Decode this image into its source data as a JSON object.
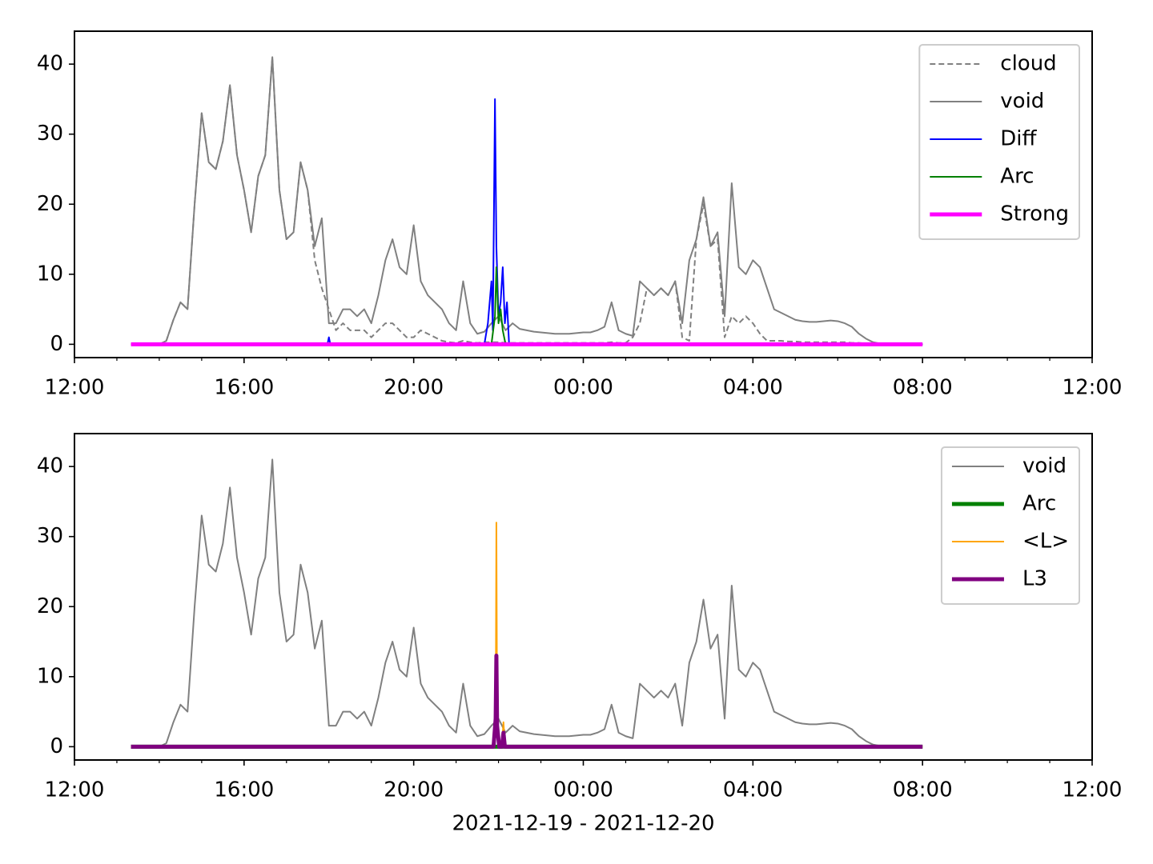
{
  "chart_data": [
    {
      "type": "line",
      "xlim": [
        "2021-12-19 12:00",
        "2021-12-20 12:00"
      ],
      "xticks": [
        {
          "value": "2021-12-19 12:00",
          "label": "12:00"
        },
        {
          "value": "2021-12-19 16:00",
          "label": "16:00"
        },
        {
          "value": "2021-12-19 20:00",
          "label": "20:00"
        },
        {
          "value": "2021-12-20 00:00",
          "label": "00:00"
        },
        {
          "value": "2021-12-20 04:00",
          "label": "04:00"
        },
        {
          "value": "2021-12-20 08:00",
          "label": "08:00"
        },
        {
          "value": "2021-12-20 12:00",
          "label": "12:00"
        }
      ],
      "xminorticks": [
        "2021-12-19 13:00",
        "2021-12-19 14:00",
        "2021-12-19 15:00",
        "2021-12-19 17:00",
        "2021-12-19 18:00",
        "2021-12-19 19:00",
        "2021-12-19 21:00",
        "2021-12-19 22:00",
        "2021-12-19 23:00",
        "2021-12-20 01:00",
        "2021-12-20 02:00",
        "2021-12-20 03:00",
        "2021-12-20 05:00",
        "2021-12-20 06:00",
        "2021-12-20 07:00",
        "2021-12-20 09:00",
        "2021-12-20 10:00",
        "2021-12-20 11:00"
      ],
      "ylim": [
        -1.9,
        44.7
      ],
      "yticks": [
        0,
        10,
        20,
        30,
        40
      ],
      "legend": "upper right",
      "x": [
        "2021-12-19 13:20",
        "2021-12-19 13:30",
        "2021-12-19 13:40",
        "2021-12-19 13:50",
        "2021-12-19 14:00",
        "2021-12-19 14:10",
        "2021-12-19 14:20",
        "2021-12-19 14:30",
        "2021-12-19 14:40",
        "2021-12-19 14:50",
        "2021-12-19 15:00",
        "2021-12-19 15:10",
        "2021-12-19 15:20",
        "2021-12-19 15:30",
        "2021-12-19 15:40",
        "2021-12-19 15:50",
        "2021-12-19 16:00",
        "2021-12-19 16:10",
        "2021-12-19 16:20",
        "2021-12-19 16:30",
        "2021-12-19 16:40",
        "2021-12-19 16:50",
        "2021-12-19 17:00",
        "2021-12-19 17:10",
        "2021-12-19 17:20",
        "2021-12-19 17:30",
        "2021-12-19 17:40",
        "2021-12-19 17:50",
        "2021-12-19 18:00",
        "2021-12-19 18:10",
        "2021-12-19 18:20",
        "2021-12-19 18:30",
        "2021-12-19 18:40",
        "2021-12-19 18:50",
        "2021-12-19 19:00",
        "2021-12-19 19:10",
        "2021-12-19 19:20",
        "2021-12-19 19:30",
        "2021-12-19 19:40",
        "2021-12-19 19:50",
        "2021-12-19 20:00",
        "2021-12-19 20:10",
        "2021-12-19 20:20",
        "2021-12-19 20:30",
        "2021-12-19 20:40",
        "2021-12-19 20:50",
        "2021-12-19 21:00",
        "2021-12-19 21:10",
        "2021-12-19 21:20",
        "2021-12-19 21:30",
        "2021-12-19 21:40",
        "2021-12-19 21:50",
        "2021-12-19 22:00",
        "2021-12-19 22:10",
        "2021-12-19 22:20",
        "2021-12-19 22:30",
        "2021-12-19 22:40",
        "2021-12-19 22:50",
        "2021-12-19 23:00",
        "2021-12-19 23:10",
        "2021-12-19 23:20",
        "2021-12-19 23:30",
        "2021-12-19 23:40",
        "2021-12-19 23:50",
        "2021-12-20 00:00",
        "2021-12-20 00:10",
        "2021-12-20 00:20",
        "2021-12-20 00:30",
        "2021-12-20 00:40",
        "2021-12-20 00:50",
        "2021-12-20 01:00",
        "2021-12-20 01:10",
        "2021-12-20 01:20",
        "2021-12-20 01:30",
        "2021-12-20 01:40",
        "2021-12-20 01:50",
        "2021-12-20 02:00",
        "2021-12-20 02:10",
        "2021-12-20 02:20",
        "2021-12-20 02:30",
        "2021-12-20 02:40",
        "2021-12-20 02:50",
        "2021-12-20 03:00",
        "2021-12-20 03:10",
        "2021-12-20 03:20",
        "2021-12-20 03:30",
        "2021-12-20 03:40",
        "2021-12-20 03:50",
        "2021-12-20 04:00",
        "2021-12-20 04:10",
        "2021-12-20 04:20",
        "2021-12-20 04:30",
        "2021-12-20 04:40",
        "2021-12-20 04:50",
        "2021-12-20 05:00",
        "2021-12-20 05:10",
        "2021-12-20 05:20",
        "2021-12-20 05:30",
        "2021-12-20 05:40",
        "2021-12-20 05:50",
        "2021-12-20 06:00",
        "2021-12-20 06:10",
        "2021-12-20 06:20",
        "2021-12-20 06:30",
        "2021-12-20 06:40",
        "2021-12-20 06:50",
        "2021-12-20 07:00",
        "2021-12-20 07:10",
        "2021-12-20 07:20",
        "2021-12-20 07:30",
        "2021-12-20 07:40",
        "2021-12-20 07:50",
        "2021-12-20 08:00"
      ],
      "series": [
        {
          "name": "cloud",
          "color": "#808080",
          "linewidth": 2,
          "dashed": true,
          "values": [
            0,
            0,
            0,
            0,
            0,
            0.5,
            3.5,
            6,
            5,
            20,
            33,
            26,
            25,
            29,
            37,
            27,
            22,
            16,
            24,
            27,
            41,
            22,
            15,
            16,
            26,
            22,
            12,
            8,
            5,
            2,
            3,
            2,
            2,
            2,
            1,
            2,
            3,
            3,
            2,
            1,
            1,
            2,
            1.5,
            1,
            0.5,
            0.3,
            0.2,
            0.5,
            0.3,
            0.2,
            0.3,
            0.3,
            0.3,
            0.2,
            0.2,
            0.2,
            0.2,
            0.2,
            0.2,
            0.2,
            0.2,
            0.2,
            0.2,
            0.2,
            0.2,
            0.2,
            0.2,
            0.2,
            0.3,
            0.2,
            0.2,
            1,
            3,
            8,
            7,
            8,
            7,
            9,
            1,
            0.5,
            15,
            20,
            14,
            15,
            1,
            4,
            3,
            4,
            3,
            1.5,
            0.5,
            0.5,
            0.5,
            0.4,
            0.4,
            0.3,
            0.3,
            0.3,
            0.3,
            0.3,
            0.3,
            0.3,
            0.2,
            0.2,
            0.1,
            0.1,
            0,
            0,
            0,
            0,
            0,
            0,
            0
          ]
        },
        {
          "name": "void",
          "color": "#808080",
          "linewidth": 2,
          "values": [
            0,
            0,
            0,
            0,
            0,
            0.5,
            3.5,
            6,
            5,
            20,
            33,
            26,
            25,
            29,
            37,
            27,
            22,
            16,
            24,
            27,
            41,
            22,
            15,
            16,
            26,
            22,
            14,
            18,
            3,
            3,
            5,
            5,
            4,
            5,
            3,
            7,
            12,
            15,
            11,
            10,
            17,
            9,
            7,
            6,
            5,
            3,
            2,
            9,
            3,
            1.5,
            1.8,
            3,
            4,
            2,
            3,
            2.2,
            2,
            1.8,
            1.7,
            1.6,
            1.5,
            1.5,
            1.5,
            1.6,
            1.7,
            1.7,
            2,
            2.5,
            6,
            2,
            1.5,
            1.2,
            9,
            8,
            7,
            8,
            7,
            9,
            3,
            12,
            15,
            21,
            14,
            16,
            4,
            23,
            11,
            10,
            12,
            11,
            8,
            5,
            4.5,
            4,
            3.5,
            3.3,
            3.2,
            3.2,
            3.3,
            3.4,
            3.3,
            3,
            2.5,
            1.5,
            0.8,
            0.3,
            0.1,
            0,
            0,
            0,
            0,
            0,
            0
          ]
        },
        {
          "name": "Diff",
          "color": "#0000ff",
          "linewidth": 2,
          "x": [
            "2021-12-19 13:20",
            "2021-12-19 17:58",
            "2021-12-19 18:00",
            "2021-12-19 18:02",
            "2021-12-19 21:40",
            "2021-12-19 21:45",
            "2021-12-19 21:50",
            "2021-12-19 21:52",
            "2021-12-19 21:55",
            "2021-12-19 21:57",
            "2021-12-19 22:00",
            "2021-12-19 22:03",
            "2021-12-19 22:06",
            "2021-12-19 22:09",
            "2021-12-19 22:12",
            "2021-12-19 22:15",
            "2021-12-19 22:20",
            "2021-12-20 08:00"
          ],
          "values": [
            0,
            0,
            1,
            0,
            0,
            3,
            9,
            2,
            35,
            14,
            4,
            6,
            11,
            3,
            6,
            0,
            0,
            0
          ]
        },
        {
          "name": "Arc",
          "color": "#008000",
          "linewidth": 2,
          "x": [
            "2021-12-19 13:20",
            "2021-12-19 21:50",
            "2021-12-19 21:55",
            "2021-12-19 21:57",
            "2021-12-19 22:00",
            "2021-12-19 22:03",
            "2021-12-19 22:06",
            "2021-12-19 22:10",
            "2021-12-20 08:00"
          ],
          "values": [
            0,
            0,
            4,
            11,
            3,
            5,
            2,
            0,
            0
          ]
        },
        {
          "name": "Strong",
          "color": "#ff00ff",
          "linewidth": 5,
          "x": [
            "2021-12-19 13:20",
            "2021-12-20 08:00"
          ],
          "values": [
            0,
            0
          ]
        }
      ]
    },
    {
      "type": "line",
      "xlabel": "2021-12-19 - 2021-12-20",
      "xlim": [
        "2021-12-19 12:00",
        "2021-12-20 12:00"
      ],
      "xticks": [
        {
          "value": "2021-12-19 12:00",
          "label": "12:00"
        },
        {
          "value": "2021-12-19 16:00",
          "label": "16:00"
        },
        {
          "value": "2021-12-19 20:00",
          "label": "20:00"
        },
        {
          "value": "2021-12-20 00:00",
          "label": "00:00"
        },
        {
          "value": "2021-12-20 04:00",
          "label": "04:00"
        },
        {
          "value": "2021-12-20 08:00",
          "label": "08:00"
        },
        {
          "value": "2021-12-20 12:00",
          "label": "12:00"
        }
      ],
      "xminorticks": [
        "2021-12-19 13:00",
        "2021-12-19 14:00",
        "2021-12-19 15:00",
        "2021-12-19 17:00",
        "2021-12-19 18:00",
        "2021-12-19 19:00",
        "2021-12-19 21:00",
        "2021-12-19 22:00",
        "2021-12-19 23:00",
        "2021-12-20 01:00",
        "2021-12-20 02:00",
        "2021-12-20 03:00",
        "2021-12-20 05:00",
        "2021-12-20 06:00",
        "2021-12-20 07:00",
        "2021-12-20 09:00",
        "2021-12-20 10:00",
        "2021-12-20 11:00"
      ],
      "ylim": [
        -1.9,
        44.7
      ],
      "yticks": [
        0,
        10,
        20,
        30,
        40
      ],
      "legend": "upper right",
      "x": [
        "2021-12-19 13:20",
        "2021-12-19 13:30",
        "2021-12-19 13:40",
        "2021-12-19 13:50",
        "2021-12-19 14:00",
        "2021-12-19 14:10",
        "2021-12-19 14:20",
        "2021-12-19 14:30",
        "2021-12-19 14:40",
        "2021-12-19 14:50",
        "2021-12-19 15:00",
        "2021-12-19 15:10",
        "2021-12-19 15:20",
        "2021-12-19 15:30",
        "2021-12-19 15:40",
        "2021-12-19 15:50",
        "2021-12-19 16:00",
        "2021-12-19 16:10",
        "2021-12-19 16:20",
        "2021-12-19 16:30",
        "2021-12-19 16:40",
        "2021-12-19 16:50",
        "2021-12-19 17:00",
        "2021-12-19 17:10",
        "2021-12-19 17:20",
        "2021-12-19 17:30",
        "2021-12-19 17:40",
        "2021-12-19 17:50",
        "2021-12-19 18:00",
        "2021-12-19 18:10",
        "2021-12-19 18:20",
        "2021-12-19 18:30",
        "2021-12-19 18:40",
        "2021-12-19 18:50",
        "2021-12-19 19:00",
        "2021-12-19 19:10",
        "2021-12-19 19:20",
        "2021-12-19 19:30",
        "2021-12-19 19:40",
        "2021-12-19 19:50",
        "2021-12-19 20:00",
        "2021-12-19 20:10",
        "2021-12-19 20:20",
        "2021-12-19 20:30",
        "2021-12-19 20:40",
        "2021-12-19 20:50",
        "2021-12-19 21:00",
        "2021-12-19 21:10",
        "2021-12-19 21:20",
        "2021-12-19 21:30",
        "2021-12-19 21:40",
        "2021-12-19 21:50",
        "2021-12-19 22:00",
        "2021-12-19 22:10",
        "2021-12-19 22:20",
        "2021-12-19 22:30",
        "2021-12-19 22:40",
        "2021-12-19 22:50",
        "2021-12-19 23:00",
        "2021-12-19 23:10",
        "2021-12-19 23:20",
        "2021-12-19 23:30",
        "2021-12-19 23:40",
        "2021-12-19 23:50",
        "2021-12-20 00:00",
        "2021-12-20 00:10",
        "2021-12-20 00:20",
        "2021-12-20 00:30",
        "2021-12-20 00:40",
        "2021-12-20 00:50",
        "2021-12-20 01:00",
        "2021-12-20 01:10",
        "2021-12-20 01:20",
        "2021-12-20 01:30",
        "2021-12-20 01:40",
        "2021-12-20 01:50",
        "2021-12-20 02:00",
        "2021-12-20 02:10",
        "2021-12-20 02:20",
        "2021-12-20 02:30",
        "2021-12-20 02:40",
        "2021-12-20 02:50",
        "2021-12-20 03:00",
        "2021-12-20 03:10",
        "2021-12-20 03:20",
        "2021-12-20 03:30",
        "2021-12-20 03:40",
        "2021-12-20 03:50",
        "2021-12-20 04:00",
        "2021-12-20 04:10",
        "2021-12-20 04:20",
        "2021-12-20 04:30",
        "2021-12-20 04:40",
        "2021-12-20 04:50",
        "2021-12-20 05:00",
        "2021-12-20 05:10",
        "2021-12-20 05:20",
        "2021-12-20 05:30",
        "2021-12-20 05:40",
        "2021-12-20 05:50",
        "2021-12-20 06:00",
        "2021-12-20 06:10",
        "2021-12-20 06:20",
        "2021-12-20 06:30",
        "2021-12-20 06:40",
        "2021-12-20 06:50",
        "2021-12-20 07:00",
        "2021-12-20 07:10",
        "2021-12-20 07:20",
        "2021-12-20 07:30",
        "2021-12-20 07:40",
        "2021-12-20 07:50",
        "2021-12-20 08:00"
      ],
      "series": [
        {
          "name": "void",
          "color": "#808080",
          "linewidth": 2,
          "values": [
            0,
            0,
            0,
            0,
            0,
            0.5,
            3.5,
            6,
            5,
            20,
            33,
            26,
            25,
            29,
            37,
            27,
            22,
            16,
            24,
            27,
            41,
            22,
            15,
            16,
            26,
            22,
            14,
            18,
            3,
            3,
            5,
            5,
            4,
            5,
            3,
            7,
            12,
            15,
            11,
            10,
            17,
            9,
            7,
            6,
            5,
            3,
            2,
            9,
            3,
            1.5,
            1.8,
            3,
            4,
            2,
            3,
            2.2,
            2,
            1.8,
            1.7,
            1.6,
            1.5,
            1.5,
            1.5,
            1.6,
            1.7,
            1.7,
            2,
            2.5,
            6,
            2,
            1.5,
            1.2,
            9,
            8,
            7,
            8,
            7,
            9,
            3,
            12,
            15,
            21,
            14,
            16,
            4,
            23,
            11,
            10,
            12,
            11,
            8,
            5,
            4.5,
            4,
            3.5,
            3.3,
            3.2,
            3.2,
            3.3,
            3.4,
            3.3,
            3,
            2.5,
            1.5,
            0.8,
            0.3,
            0.1,
            0,
            0,
            0,
            0,
            0,
            0
          ]
        },
        {
          "name": "Arc",
          "color": "#008000",
          "linewidth": 5,
          "x": [
            "2021-12-19 13:20",
            "2021-12-20 08:00"
          ],
          "values": [
            0,
            0
          ]
        },
        {
          "name": "<L>",
          "color": "#ffa500",
          "linewidth": 2,
          "x": [
            "2021-12-19 13:20",
            "2021-12-19 21:53",
            "2021-12-19 21:56",
            "2021-12-19 21:57",
            "2021-12-19 21:58",
            "2021-12-19 22:01",
            "2021-12-19 22:05",
            "2021-12-19 22:07",
            "2021-12-19 22:09",
            "2021-12-20 08:00"
          ],
          "values": [
            0,
            0,
            2,
            32,
            3,
            0,
            0,
            3.5,
            0,
            0
          ]
        },
        {
          "name": "L3",
          "color": "#800080",
          "linewidth": 5,
          "x": [
            "2021-12-19 13:20",
            "2021-12-19 21:53",
            "2021-12-19 21:56",
            "2021-12-19 21:57",
            "2021-12-19 21:58",
            "2021-12-19 22:01",
            "2021-12-19 22:05",
            "2021-12-19 22:07",
            "2021-12-19 22:09",
            "2021-12-20 08:00"
          ],
          "values": [
            0,
            0,
            4,
            13,
            3,
            0,
            0,
            2,
            0,
            0
          ]
        }
      ]
    }
  ]
}
